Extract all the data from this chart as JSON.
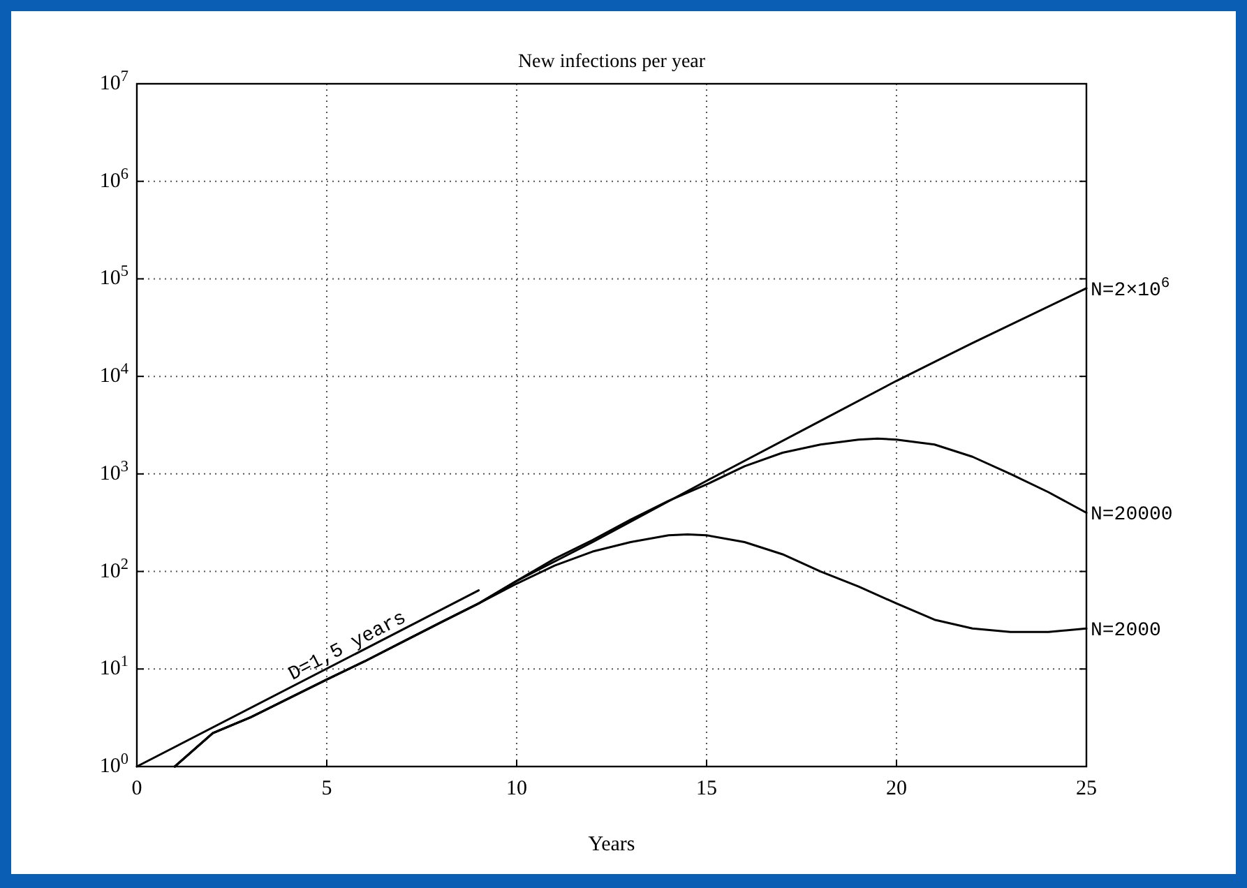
{
  "chart_data": {
    "type": "line",
    "title": "New infections per year",
    "xlabel": "Years",
    "log": "y",
    "grid": true,
    "xlim": [
      0,
      25
    ],
    "xticks": [
      0,
      5,
      10,
      15,
      20,
      25
    ],
    "ylim": [
      1,
      10000000
    ],
    "yticks": [
      {
        "value": 1,
        "label": "10$^{0}$"
      },
      {
        "value": 10,
        "label": "10$^{1}$"
      },
      {
        "value": 100,
        "label": "10$^{2}$"
      },
      {
        "value": 1000,
        "label": "10$^{3}$"
      },
      {
        "value": 10000,
        "label": "10$^{4}$"
      },
      {
        "value": 100000,
        "label": "10$^{5}$"
      },
      {
        "value": 1000000,
        "label": "10$^{6}$"
      },
      {
        "value": 10000000,
        "label": "10$^{7}$"
      }
    ],
    "series": [
      {
        "name": "N=2×10$^{6}$",
        "color": "#000000",
        "x": [
          1,
          2,
          3,
          4,
          5,
          6,
          7,
          8,
          9,
          10,
          12,
          15,
          18,
          20,
          22,
          25
        ],
        "values": [
          1,
          2.2,
          3.2,
          5,
          7.8,
          12,
          19,
          30,
          47,
          80,
          200,
          850,
          3500,
          9000,
          22000,
          80000
        ]
      },
      {
        "name": "N=20000",
        "color": "#000000",
        "x": [
          1,
          2,
          3,
          4,
          5,
          6,
          7,
          8,
          9,
          10,
          11,
          12,
          13,
          14,
          15,
          16,
          17,
          18,
          19,
          19.5,
          20,
          21,
          22,
          23,
          24,
          25
        ],
        "values": [
          1,
          2.2,
          3.2,
          5,
          7.8,
          12,
          19,
          30,
          47,
          80,
          135,
          210,
          340,
          530,
          780,
          1200,
          1650,
          2000,
          2250,
          2300,
          2250,
          2000,
          1500,
          1000,
          650,
          400
        ]
      },
      {
        "name": "N=2000",
        "color": "#000000",
        "x": [
          1,
          2,
          3,
          4,
          5,
          6,
          7,
          8,
          9,
          10,
          11,
          12,
          13,
          14,
          14.5,
          15,
          16,
          17,
          18,
          19,
          20,
          21,
          22,
          23,
          24,
          25
        ],
        "values": [
          1,
          2.2,
          3.2,
          5,
          7.8,
          12,
          19,
          30,
          47,
          75,
          115,
          160,
          200,
          235,
          240,
          235,
          200,
          150,
          100,
          70,
          47,
          32,
          26,
          24,
          24,
          26
        ]
      },
      {
        "name": "D=1,5 years",
        "color": "#000000",
        "x": [
          0,
          9
        ],
        "values": [
          1,
          64
        ]
      }
    ]
  }
}
